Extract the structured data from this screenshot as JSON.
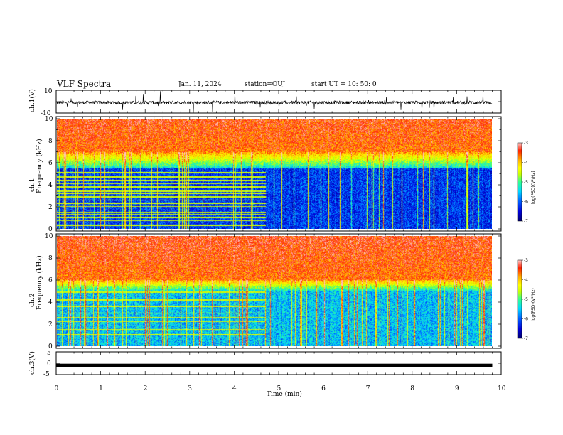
{
  "header": {
    "title": "VLF Spectra",
    "date": "Jan. 11, 2024",
    "station": "station=OUJ",
    "start": "start UT =  10: 50: 0"
  },
  "colors": {
    "spectrum": [
      "#00006e",
      "#0000d8",
      "#005cff",
      "#00d8ff",
      "#30ff90",
      "#c8ff00",
      "#ffff00",
      "#ffb000",
      "#ff2000",
      "#ffc8c8"
    ]
  },
  "chart_data": [
    {
      "type": "line",
      "name": "ch1-waveform",
      "ylabel": "ch.1(V)",
      "ylim": [
        -10,
        10
      ],
      "yticks": [
        "10",
        "-10"
      ],
      "x_range_min": [
        0,
        9.8
      ],
      "note_values": {
        "baseline": -0.8,
        "typical_spread": 1.5,
        "spike_range": [
          -10,
          10
        ]
      }
    },
    {
      "type": "heatmap",
      "name": "ch1-spectrogram",
      "ylabel": "Frequency (kHz)",
      "panel_label": "ch.1",
      "xlim": [
        0,
        10
      ],
      "ylim": [
        0,
        10
      ],
      "data_x_max": 9.8,
      "yticks": [
        "0",
        "2",
        "4",
        "6",
        "8",
        "10"
      ],
      "colorbar": {
        "label": "log(PSD)(V²/Hz)",
        "min": -7,
        "max": -3,
        "ticks": [
          "-3",
          "-4",
          "-5",
          "-6",
          "-7"
        ]
      },
      "lowband_top_khz": 5.5,
      "highband_from_khz": 7,
      "banded_lines_khz": [
        0.3,
        0.7,
        1.0,
        1.3,
        1.5,
        2.0,
        2.3,
        2.6,
        2.9,
        3.2,
        3.4,
        3.8,
        4.1,
        4.4,
        4.7,
        5.1
      ],
      "lines_end_min": 4.7
    },
    {
      "type": "heatmap",
      "name": "ch2-spectrogram",
      "ylabel": "Frequency (kHz)",
      "panel_label": "ch.2",
      "xlim": [
        0,
        10
      ],
      "ylim": [
        0,
        10
      ],
      "data_x_max": 9.8,
      "yticks": [
        "0",
        "2",
        "4",
        "6",
        "8",
        "10"
      ],
      "colorbar": {
        "label": "log(PSD)(V²/Hz)",
        "min": -7,
        "max": -3,
        "ticks": [
          "-3",
          "-4",
          "-5",
          "-6",
          "-7"
        ]
      },
      "lowband_top_khz": 5.0,
      "highband_from_khz": 6,
      "banded_lines_khz": [
        1.0,
        1.5,
        2.2,
        2.6,
        3.0,
        3.6,
        4.2,
        4.9
      ],
      "lines_end_min": 4.7
    },
    {
      "type": "line",
      "name": "ch3-waveform",
      "ylabel": "ch.3(V)",
      "xlabel": "Time (min)",
      "ylim": [
        -5,
        5
      ],
      "yticks": [
        "5",
        "0",
        "-5"
      ],
      "xlim": [
        0,
        10
      ],
      "xticks": [
        "0",
        "1",
        "2",
        "3",
        "4",
        "5",
        "6",
        "7",
        "8",
        "9",
        "10"
      ],
      "constant_value": -1.0,
      "data_x_max": 9.8
    }
  ]
}
